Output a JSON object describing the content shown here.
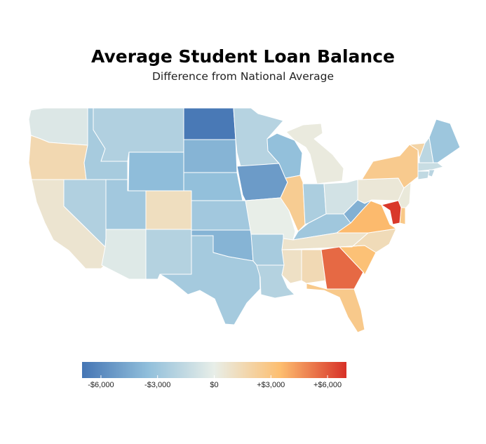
{
  "title": "Average Student Loan Balance",
  "subtitle": "Difference from National Average",
  "chart_data": {
    "type": "choropleth",
    "region": "USA",
    "unit": "USD difference from national average",
    "color_scale": {
      "min": -7000,
      "max": 7000,
      "stops": [
        {
          "value": -7000,
          "color": "#4575b4"
        },
        {
          "value": -3500,
          "color": "#91bfdb"
        },
        {
          "value": 0,
          "color": "#e8eee8"
        },
        {
          "value": 3500,
          "color": "#fdbe6f"
        },
        {
          "value": 7000,
          "color": "#d73027"
        }
      ]
    },
    "legend": {
      "ticks": [
        {
          "value": -6000,
          "label": "-$6,000"
        },
        {
          "value": -3000,
          "label": "-$3,000"
        },
        {
          "value": 0,
          "label": "$0"
        },
        {
          "value": 3000,
          "label": "+$3,000"
        },
        {
          "value": 6000,
          "label": "+$6,000"
        }
      ]
    },
    "values": {
      "WA": -500,
      "OR": 1600,
      "CA": 700,
      "NV": -2200,
      "ID": -2600,
      "MT": -2200,
      "WY": -3600,
      "UT": -2800,
      "AZ": -400,
      "CO": 1200,
      "NM": -2100,
      "ND": -6800,
      "SD": -4000,
      "NE": -3400,
      "KS": -2800,
      "OK": -4000,
      "TX": -2700,
      "MN": -2000,
      "IA": -5200,
      "MO": 0,
      "AR": -2600,
      "LA": -2100,
      "WI": -3400,
      "IL": 2500,
      "MI": 300,
      "IN": -2400,
      "OH": -900,
      "KY": -2900,
      "TN": 800,
      "MS": 1000,
      "AL": 1500,
      "GA": 5600,
      "FL": 2700,
      "SC": 3300,
      "NC": 1400,
      "VA": 3600,
      "WV": -4200,
      "PA": 500,
      "NY": 2600,
      "VT": 1900,
      "NH": -1800,
      "ME": -3000,
      "MA": -1300,
      "RI": -1900,
      "CT": -1600,
      "NJ": 400,
      "DE": 2800,
      "MD": 6800
    }
  }
}
